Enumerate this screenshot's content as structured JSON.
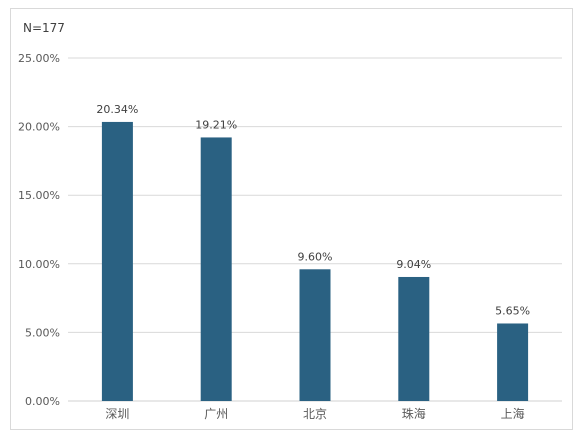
{
  "chart_data": {
    "type": "bar",
    "annotation": "N=177",
    "categories": [
      "深圳",
      "广州",
      "北京",
      "珠海",
      "上海"
    ],
    "values": [
      20.34,
      19.21,
      9.6,
      9.04,
      5.65
    ],
    "data_labels": [
      "20.34%",
      "19.21%",
      "9.60%",
      "9.04%",
      "5.65%"
    ],
    "yticks": [
      "0.00%",
      "5.00%",
      "10.00%",
      "15.00%",
      "20.00%",
      "25.00%"
    ],
    "ylim": [
      0,
      25
    ],
    "grid": true,
    "bar_color": "#2a6182",
    "grid_color": "#d9d9d9"
  }
}
